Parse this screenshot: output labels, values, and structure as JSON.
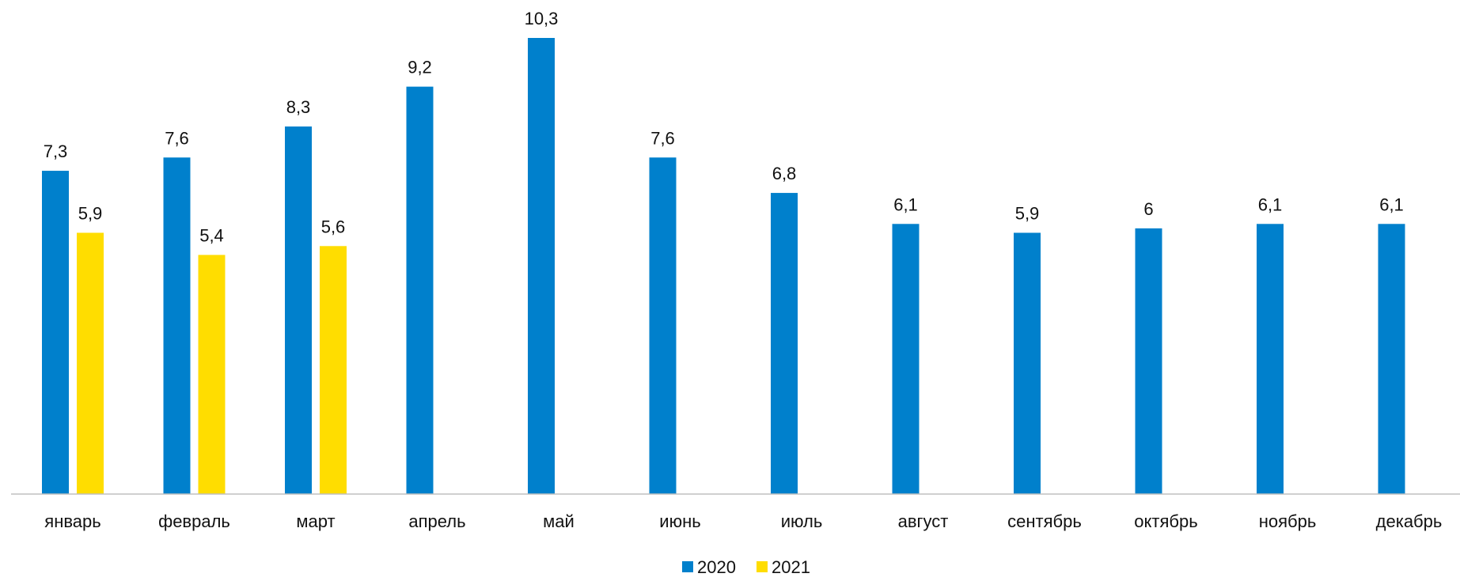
{
  "chart_data": {
    "type": "bar",
    "categories": [
      "январь",
      "февраль",
      "март",
      "апрель",
      "май",
      "июнь",
      "июль",
      "август",
      "сентябрь",
      "октябрь",
      "ноябрь",
      "декабрь"
    ],
    "series": [
      {
        "name": "2020",
        "color": "#0080CC",
        "values": [
          7.3,
          7.6,
          8.3,
          9.2,
          10.3,
          7.6,
          6.8,
          6.1,
          5.9,
          6,
          6.1,
          6.1
        ],
        "labels": [
          "7,3",
          "7,6",
          "8,3",
          "9,2",
          "10,3",
          "7,6",
          "6,8",
          "6,1",
          "5,9",
          "6",
          "6,1",
          "6,1"
        ]
      },
      {
        "name": "2021",
        "color": "#FFDD00",
        "values": [
          5.9,
          5.4,
          5.6,
          null,
          null,
          null,
          null,
          null,
          null,
          null,
          null,
          null
        ],
        "labels": [
          "5,9",
          "5,4",
          "5,6",
          "",
          "",
          "",
          "",
          "",
          "",
          "",
          "",
          ""
        ]
      }
    ],
    "ylim": [
      0,
      11
    ],
    "grid": false,
    "legend_position": "bottom-center"
  }
}
